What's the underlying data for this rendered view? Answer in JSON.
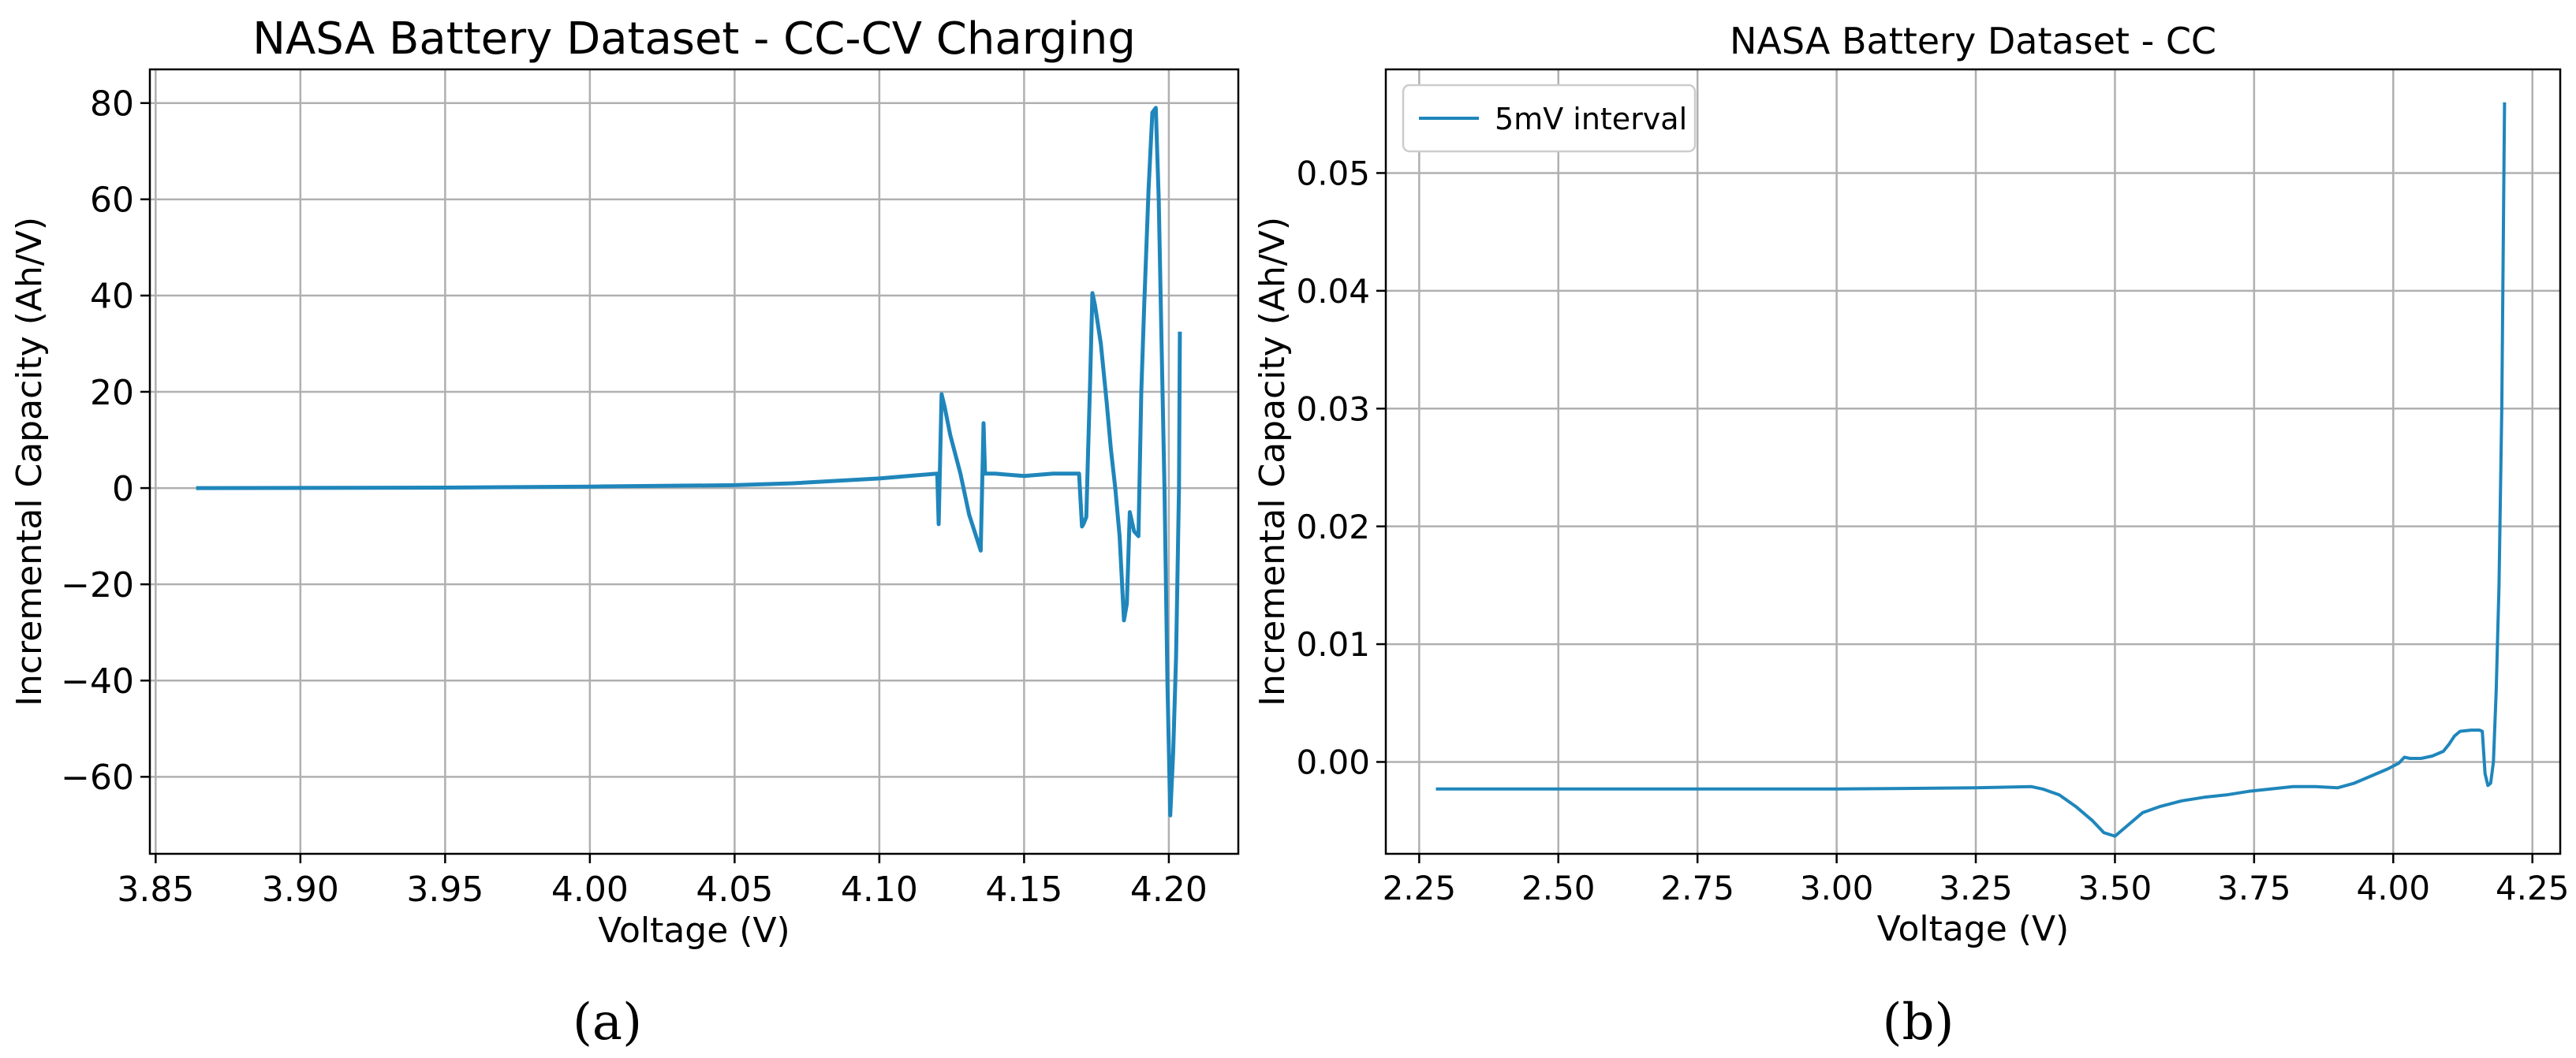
{
  "chart_data": [
    {
      "type": "line",
      "title": "NASA Battery Dataset - CC-CV Charging",
      "xlabel": "Voltage (V)",
      "ylabel": "Incremental Capacity (Ah/V)",
      "xlim": [
        3.848,
        4.224
      ],
      "ylim": [
        -76,
        87
      ],
      "xticks": [
        3.85,
        3.9,
        3.95,
        4.0,
        4.05,
        4.1,
        4.15,
        4.2
      ],
      "xtick_labels": [
        "3.85",
        "3.90",
        "3.95",
        "4.00",
        "4.05",
        "4.10",
        "4.15",
        "4.20"
      ],
      "yticks": [
        -60,
        -40,
        -20,
        0,
        20,
        40,
        60,
        80
      ],
      "ytick_labels": [
        "−60",
        "−40",
        "−20",
        "0",
        "20",
        "40",
        "60",
        "80"
      ],
      "grid": true,
      "legend": null,
      "line_color": "#1f86bb",
      "series": [
        {
          "x": [
            3.864,
            3.95,
            4.0,
            4.05,
            4.07,
            4.1,
            4.11,
            4.12,
            4.1205,
            4.1215,
            4.1225,
            4.1245,
            4.128,
            4.131,
            4.135,
            4.136,
            4.1365,
            4.137,
            4.14,
            4.15,
            4.16,
            4.168,
            4.169,
            4.17,
            4.1705,
            4.1715,
            4.172,
            4.1728,
            4.1736,
            4.1745,
            4.1765,
            4.1785,
            4.18,
            4.1815,
            4.183,
            4.1845,
            4.1855,
            4.1865,
            4.188,
            4.1895,
            4.1905,
            4.1915,
            4.193,
            4.1943,
            4.1955,
            4.1965,
            4.1975,
            4.1985,
            4.1995,
            4.2005,
            4.2015,
            4.2025,
            4.2035,
            4.2038
          ],
          "y": [
            0,
            0.1,
            0.3,
            0.6,
            1.0,
            2.0,
            2.5,
            3.0,
            -7.5,
            19.5,
            17.0,
            11.0,
            3.0,
            -5.5,
            -13.0,
            13.5,
            3.0,
            3.0,
            3.0,
            2.5,
            3.0,
            3.0,
            3.0,
            -8.0,
            -7.5,
            -6.0,
            5.0,
            22.0,
            40.5,
            38.0,
            30.0,
            18.0,
            8.0,
            0.0,
            -10.0,
            -27.5,
            -24.0,
            -5.0,
            -9.0,
            -10.0,
            20.0,
            38.0,
            62.0,
            78.0,
            79.0,
            60.0,
            30.0,
            0.0,
            -40.0,
            -68.0,
            -55.0,
            -35.0,
            0.0,
            32.5
          ]
        }
      ]
    },
    {
      "type": "line",
      "title": "NASA Battery Dataset - CC",
      "xlabel": "Voltage (V)",
      "ylabel": "Incremental Capacity (Ah/V)",
      "xlim": [
        2.19,
        4.3
      ],
      "ylim": [
        -0.0078,
        0.0588
      ],
      "xticks": [
        2.25,
        2.5,
        2.75,
        3.0,
        3.25,
        3.5,
        3.75,
        4.0,
        4.25
      ],
      "xtick_labels": [
        "2.25",
        "2.50",
        "2.75",
        "3.00",
        "3.25",
        "3.50",
        "3.75",
        "4.00",
        "4.25"
      ],
      "yticks": [
        0.0,
        0.01,
        0.02,
        0.03,
        0.04,
        0.05
      ],
      "ytick_labels": [
        "0.00",
        "0.01",
        "0.02",
        "0.03",
        "0.04",
        "0.05"
      ],
      "grid": true,
      "legend": "top-left",
      "line_color": "#1f86bb",
      "series": [
        {
          "name": "5mV interval",
          "x": [
            2.28,
            2.5,
            2.75,
            3.0,
            3.25,
            3.35,
            3.37,
            3.4,
            3.43,
            3.46,
            3.48,
            3.5,
            3.52,
            3.55,
            3.58,
            3.62,
            3.66,
            3.7,
            3.74,
            3.78,
            3.82,
            3.86,
            3.9,
            3.93,
            3.96,
            3.99,
            4.01,
            4.02,
            4.03,
            4.05,
            4.07,
            4.09,
            4.1,
            4.11,
            4.12,
            4.14,
            4.155,
            4.16,
            4.165,
            4.17,
            4.175,
            4.18,
            4.185,
            4.19,
            4.195,
            4.2
          ],
          "y": [
            -0.0023,
            -0.0023,
            -0.0023,
            -0.0023,
            -0.0022,
            -0.0021,
            -0.0023,
            -0.0028,
            -0.0038,
            -0.005,
            -0.006,
            -0.0063,
            -0.0055,
            -0.0043,
            -0.0038,
            -0.0033,
            -0.003,
            -0.0028,
            -0.0025,
            -0.0023,
            -0.0021,
            -0.0021,
            -0.0022,
            -0.0018,
            -0.0012,
            -0.0006,
            -0.0001,
            0.0004,
            0.0003,
            0.0003,
            0.0005,
            0.0009,
            0.0015,
            0.0022,
            0.0026,
            0.0027,
            0.0027,
            0.0026,
            -0.001,
            -0.002,
            -0.0018,
            0.0,
            0.006,
            0.015,
            0.03,
            0.056
          ]
        }
      ]
    }
  ],
  "captions": [
    "(a)",
    "(b)"
  ]
}
